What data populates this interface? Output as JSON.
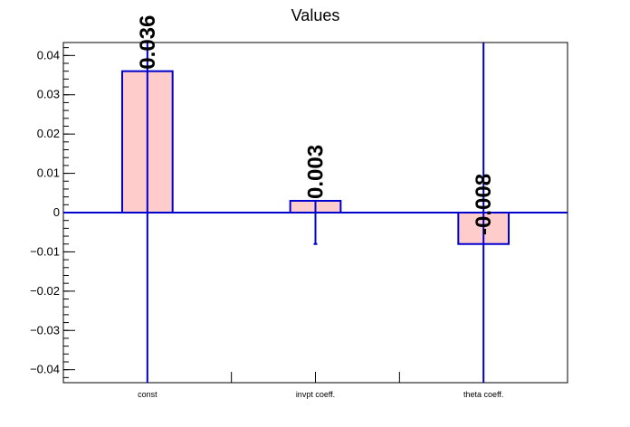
{
  "chart_data": {
    "type": "bar",
    "title": "Values",
    "xlabel": "",
    "ylabel": "",
    "categories": [
      "const",
      "invpt coeff.",
      "theta coeff."
    ],
    "values": [
      0.036,
      0.003,
      -0.008
    ],
    "value_labels": [
      "0.036",
      "0.003",
      "-0.008"
    ],
    "error_bars": [
      {
        "low": -1.0,
        "high": 1.0
      },
      {
        "low": -0.008,
        "high": 0.003
      },
      {
        "low": -1.0,
        "high": 1.0
      }
    ],
    "ylim": [
      -0.0433,
      0.0433
    ],
    "y_ticks": [
      -0.04,
      -0.03,
      -0.02,
      -0.01,
      0,
      0.01,
      0.02,
      0.03,
      0.04
    ],
    "y_tick_labels": [
      "−0.04",
      "−0.03",
      "−0.02",
      "−0.01",
      "0",
      "0.01",
      "0.02",
      "0.03",
      "0.04"
    ],
    "grid": false,
    "legend": "none",
    "colors": {
      "bar_fill": "#ffcccc",
      "bar_stroke": "#0000cc",
      "zero_line": "#0000cc",
      "error_bar": "#0000cc",
      "axis": "#000000"
    }
  }
}
